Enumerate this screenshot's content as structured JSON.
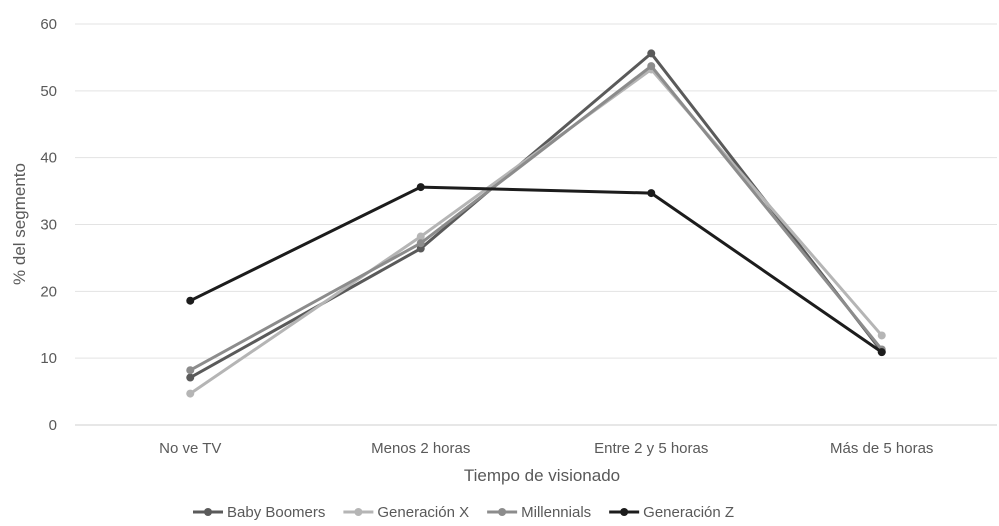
{
  "chart_data": {
    "type": "line",
    "title": "",
    "xlabel": "Tiempo de visionado",
    "ylabel": "% del segmento",
    "categories": [
      "No ve TV",
      "Menos 2 horas",
      "Entre 2 y 5 horas",
      "Más de 5 horas"
    ],
    "ylim": [
      0,
      60
    ],
    "yticks": [
      "0",
      "10",
      "20",
      "30",
      "40",
      "50",
      "60"
    ],
    "grid": "horizontal",
    "legend_position": "bottom",
    "series": [
      {
        "name": "Baby Boomers",
        "values": [
          7.1,
          26.4,
          55.6,
          11.0
        ],
        "color": "#5a5a5a"
      },
      {
        "name": "Generación X",
        "values": [
          4.7,
          28.2,
          53.2,
          13.4
        ],
        "color": "#b5b5b5"
      },
      {
        "name": "Millennials",
        "values": [
          8.2,
          27.2,
          53.7,
          11.3
        ],
        "color": "#8c8c8c"
      },
      {
        "name": "Generación Z",
        "values": [
          18.6,
          35.6,
          34.7,
          10.9
        ],
        "color": "#1c1c1c"
      }
    ]
  }
}
